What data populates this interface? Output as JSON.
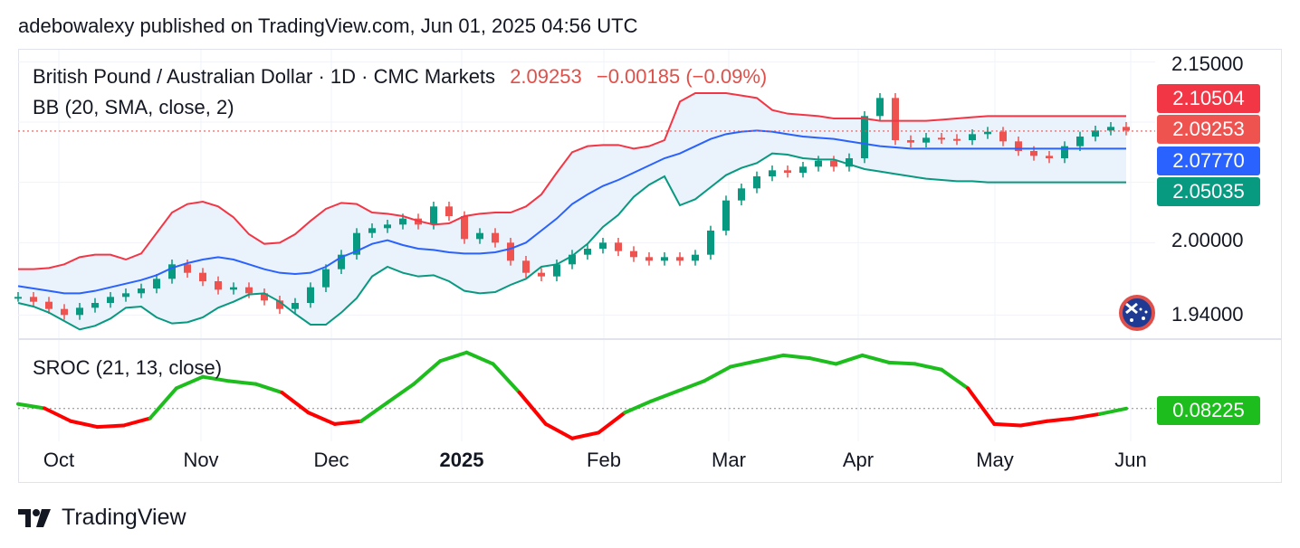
{
  "header": {
    "published": "adebowalexy published on TradingView.com, Jun 01, 2025 04:56 UTC"
  },
  "legend": {
    "symbol": "British Pound / Australian Dollar · 1D · CMC Markets",
    "last": "2.09253",
    "change": "−0.00185 (−0.09%)",
    "bb": "BB (20, SMA, close, 2)",
    "sroc": "SROC (21, 13, close)"
  },
  "price_axis": [
    "2.15000",
    "2.00000",
    "1.94000"
  ],
  "tags": {
    "upper": {
      "label": "2.10504",
      "color": "#f23645"
    },
    "last": {
      "label": "2.09253",
      "color": "#ef5350"
    },
    "basis": {
      "label": "2.07770",
      "color": "#2962ff"
    },
    "lower": {
      "label": "2.05035",
      "color": "#089981"
    },
    "sroc": {
      "label": "0.08225",
      "color": "#1ebd1e"
    }
  },
  "time_axis": [
    {
      "label": "Oct",
      "bold": false
    },
    {
      "label": "Nov",
      "bold": false
    },
    {
      "label": "Dec",
      "bold": false
    },
    {
      "label": "2025",
      "bold": true
    },
    {
      "label": "Feb",
      "bold": false
    },
    {
      "label": "Mar",
      "bold": false
    },
    {
      "label": "Apr",
      "bold": false
    },
    {
      "label": "May",
      "bold": false
    },
    {
      "label": "Jun",
      "bold": false
    }
  ],
  "footer": {
    "brand": "TradingView"
  },
  "colors": {
    "up": "#089981",
    "down": "#ef5350",
    "upper_band": "#f23645",
    "basis": "#2962ff",
    "lower_band": "#089981",
    "band_fill": "#eaf2fb",
    "sroc_up": "#1ebd1e",
    "sroc_down": "#ff0000"
  },
  "chart_data": {
    "type": "line",
    "title": "British Pound / Australian Dollar · 1D · CMC Markets",
    "ylim": [
      1.92,
      2.16
    ],
    "yticks": [
      1.94,
      2.0,
      2.15
    ],
    "series": [
      {
        "name": "BB (20, SMA, close, 2)",
        "close": [
          1.955,
          1.951,
          1.945,
          1.94,
          1.946,
          1.95,
          1.955,
          1.958,
          1.962,
          1.97,
          1.982,
          1.975,
          1.968,
          1.961,
          1.963,
          1.958,
          1.952,
          1.945,
          1.95,
          1.963,
          1.978,
          1.99,
          2.008,
          2.012,
          2.015,
          2.02,
          2.015,
          2.03,
          2.022,
          2.003,
          2.008,
          2.0,
          1.985,
          1.975,
          1.972,
          1.982,
          1.99,
          1.995,
          2.0,
          1.993,
          1.988,
          1.985,
          1.988,
          1.985,
          1.99,
          2.01,
          2.035,
          2.045,
          2.055,
          2.06,
          2.058,
          2.063,
          2.068,
          2.063,
          2.07,
          2.105,
          2.12,
          2.085,
          2.083,
          2.087,
          2.086,
          2.085,
          2.09,
          2.092,
          2.084,
          2.076,
          2.072,
          2.07,
          2.08,
          2.088,
          2.093,
          2.096,
          2.093
        ],
        "upper": [
          1.978,
          1.978,
          1.979,
          1.982,
          1.988,
          1.99,
          1.99,
          1.986,
          1.991,
          2.008,
          2.025,
          2.032,
          2.034,
          2.03,
          2.021,
          2.007,
          1.999,
          2.0,
          2.007,
          2.018,
          2.028,
          2.033,
          2.032,
          2.025,
          2.024,
          2.022,
          2.018,
          2.015,
          2.016,
          2.022,
          2.024,
          2.025,
          2.025,
          2.03,
          2.04,
          2.058,
          2.075,
          2.08,
          2.081,
          2.081,
          2.078,
          2.08,
          2.085,
          2.117,
          2.124,
          2.124,
          2.124,
          2.122,
          2.12,
          2.11,
          2.107,
          2.106,
          2.105,
          2.103,
          2.103,
          2.103,
          2.101,
          2.101,
          2.101,
          2.101,
          2.102,
          2.103,
          2.104,
          2.105,
          2.105,
          2.105,
          2.105,
          2.105,
          2.105,
          2.105,
          2.105,
          2.105,
          2.105
        ],
        "basis": [
          1.964,
          1.962,
          1.96,
          1.958,
          1.958,
          1.96,
          1.963,
          1.966,
          1.969,
          1.973,
          1.979,
          1.983,
          1.986,
          1.988,
          1.986,
          1.982,
          1.978,
          1.975,
          1.974,
          1.975,
          1.98,
          1.988,
          1.993,
          1.999,
          2.002,
          1.998,
          1.995,
          1.994,
          1.992,
          1.991,
          1.991,
          1.992,
          1.995,
          2.0,
          2.01,
          2.02,
          2.032,
          2.04,
          2.047,
          2.052,
          2.058,
          2.064,
          2.07,
          2.074,
          2.08,
          2.086,
          2.09,
          2.092,
          2.093,
          2.092,
          2.09,
          2.088,
          2.087,
          2.086,
          2.084,
          2.082,
          2.08,
          2.079,
          2.078,
          2.078,
          2.078,
          2.078,
          2.078,
          2.078,
          2.078,
          2.078,
          2.078,
          2.078,
          2.078,
          2.078,
          2.078,
          2.078,
          2.078
        ],
        "lower": [
          1.95,
          1.947,
          1.942,
          1.935,
          1.928,
          1.931,
          1.937,
          1.946,
          1.947,
          1.938,
          1.933,
          1.934,
          1.938,
          1.946,
          1.951,
          1.957,
          1.958,
          1.951,
          1.941,
          1.932,
          1.932,
          1.942,
          1.954,
          1.972,
          1.98,
          1.975,
          1.972,
          1.973,
          1.968,
          1.96,
          1.958,
          1.959,
          1.965,
          1.97,
          1.98,
          1.982,
          1.989,
          1.999,
          2.013,
          2.023,
          2.038,
          2.048,
          2.055,
          2.031,
          2.036,
          2.046,
          2.056,
          2.062,
          2.066,
          2.074,
          2.073,
          2.07,
          2.069,
          2.069,
          2.065,
          2.061,
          2.059,
          2.057,
          2.055,
          2.053,
          2.052,
          2.051,
          2.051,
          2.05,
          2.05,
          2.05,
          2.05,
          2.05,
          2.05,
          2.05,
          2.05,
          2.05,
          2.05
        ]
      }
    ],
    "sroc": {
      "name": "SROC (21, 13, close)",
      "last": 0.08225,
      "values": [
        0.4,
        0.1,
        -0.8,
        -1.2,
        -1.1,
        -0.6,
        1.5,
        2.3,
        2.0,
        1.8,
        1.2,
        -0.2,
        -1.0,
        -0.8,
        0.5,
        1.8,
        3.4,
        4.0,
        3.2,
        1.2,
        -1.0,
        -2.0,
        -1.6,
        -0.2,
        0.6,
        1.3,
        2.0,
        3.0,
        3.4,
        3.8,
        3.6,
        3.2,
        3.8,
        3.3,
        3.2,
        2.8,
        1.5,
        -1.0,
        -1.1,
        -0.8,
        -0.6,
        -0.3,
        0.08
      ]
    }
  }
}
